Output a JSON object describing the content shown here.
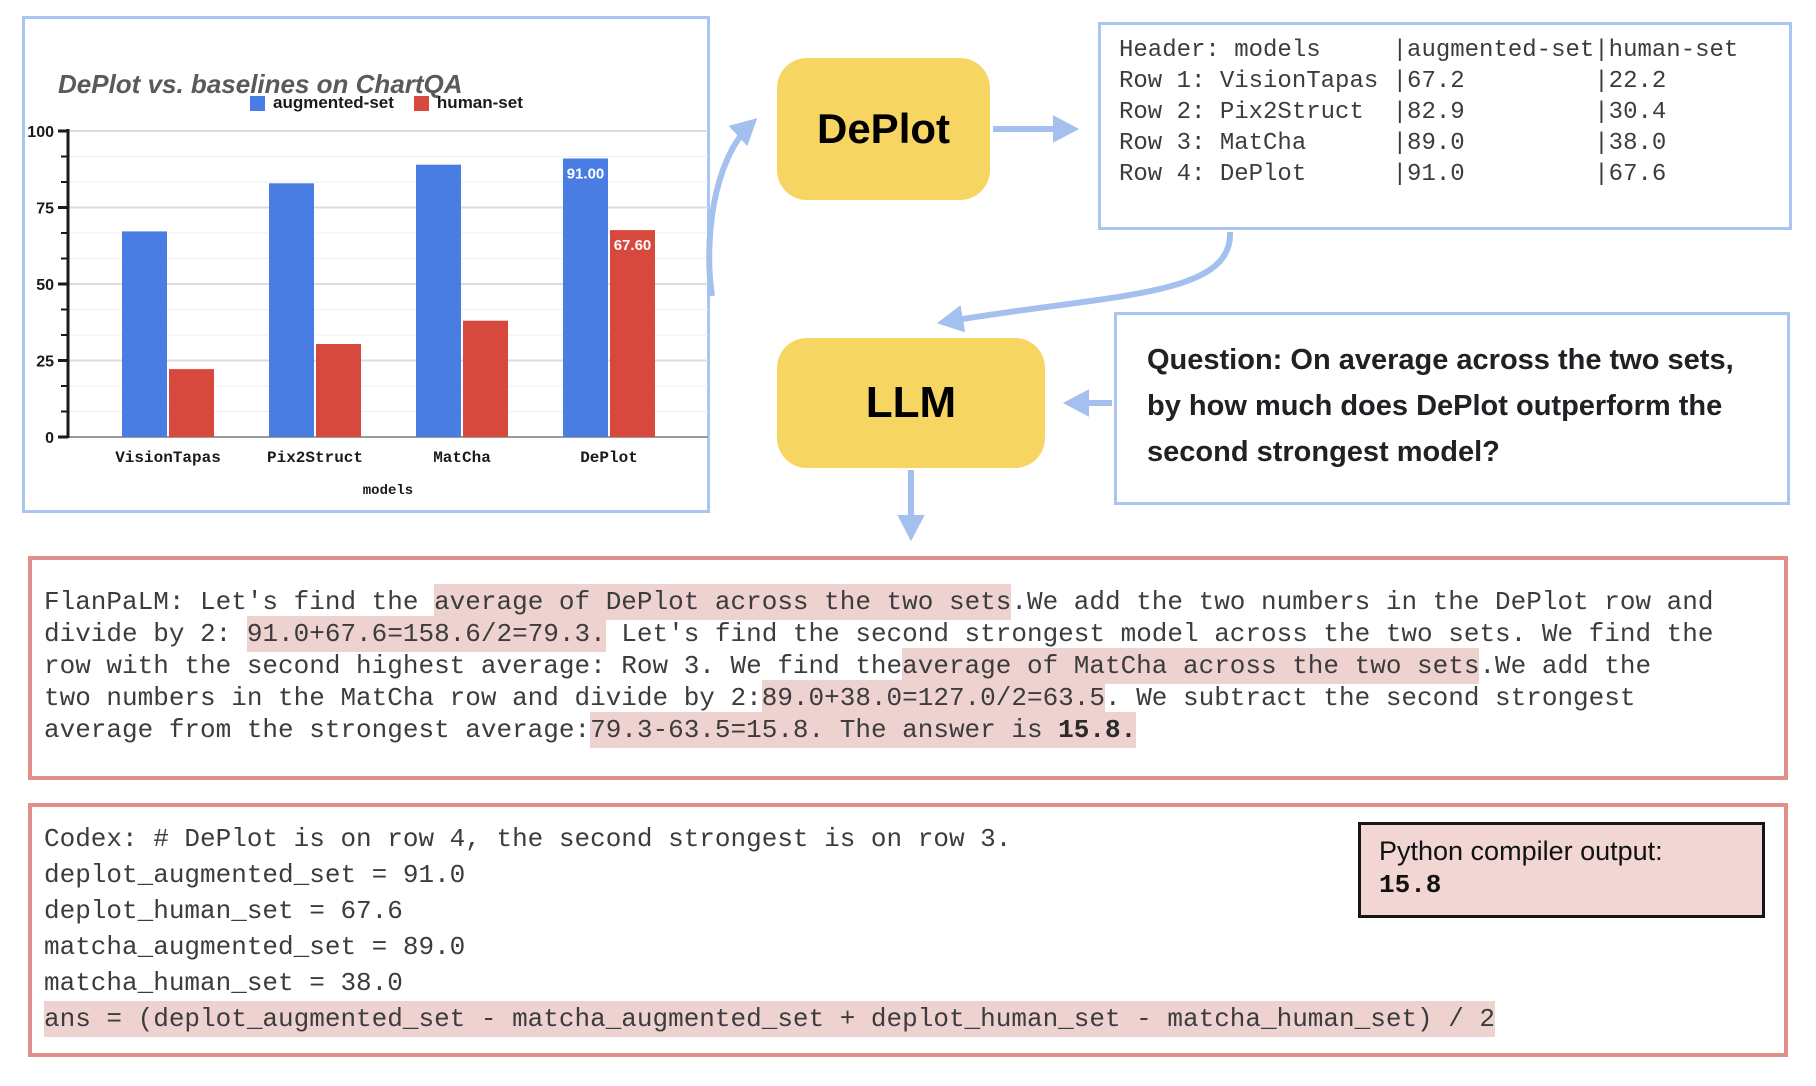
{
  "colors": {
    "bar_blue": "#4a7de4",
    "bar_red": "#d8493d",
    "box_border_blue": "#a9c5f2",
    "box_border_salmon": "#e08f8a",
    "arrow_blue": "#a4c0ee",
    "node_yellow": "#f6d563",
    "highlight_pink": "#edd2d0"
  },
  "chart_data": {
    "type": "bar",
    "title": "DePlot vs. baselines on ChartQA",
    "categories": [
      "VisionTapas",
      "Pix2Struct",
      "MatCha",
      "DePlot"
    ],
    "series": [
      {
        "name": "augmented-set",
        "color": "#4a7de4",
        "values": [
          67.2,
          82.9,
          89.0,
          91.0
        ]
      },
      {
        "name": "human-set",
        "color": "#d8493d",
        "values": [
          22.2,
          30.4,
          38.0,
          67.6
        ]
      }
    ],
    "value_labels": [
      [
        null,
        null,
        null,
        "91.00"
      ],
      [
        null,
        null,
        null,
        "67.60"
      ]
    ],
    "xlabel": "models",
    "ylabel": "",
    "ylim": [
      0,
      100
    ],
    "yticks": [
      0,
      25,
      50,
      75,
      100
    ],
    "grid": true,
    "legend_position": "top"
  },
  "pipeline": {
    "deplot_label": "DePlot",
    "llm_label": "LLM"
  },
  "table_box": {
    "lines": [
      "Header: models     |augmented-set|human-set",
      "Row 1: VisionTapas |67.2         |22.2",
      "Row 2: Pix2Struct  |82.9         |30.4",
      "Row 3: MatCha      |89.0         |38.0",
      "Row 4: DePlot      |91.0         |67.6"
    ]
  },
  "question_box": {
    "lines": [
      "Question: On average across the two sets,",
      "by how much does DePlot outperform the",
      "second strongest model?"
    ]
  },
  "flanpalm_box": {
    "lines": [
      [
        {
          "t": "FlanPaLM: Let's find the ",
          "h": false
        },
        {
          "t": "average of DePlot across the two sets",
          "h": true
        },
        {
          "t": ".We add the two numbers in the DePlot row and",
          "h": false
        }
      ],
      [
        {
          "t": "divide by 2: ",
          "h": false
        },
        {
          "t": "91.0+67.6=158.6/2=79.3.",
          "h": true
        },
        {
          "t": " Let's find the second strongest model across the two sets. We find the",
          "h": false
        }
      ],
      [
        {
          "t": "row with the second highest average: Row 3. We find the",
          "h": false
        },
        {
          "t": "average of MatCha across the two sets",
          "h": true
        },
        {
          "t": ".We add the",
          "h": false
        }
      ],
      [
        {
          "t": "two numbers in the MatCha row and divide by 2:",
          "h": false
        },
        {
          "t": "89.0+38.0=127.0/2=63.5",
          "h": true
        },
        {
          "t": ". We subtract the second strongest",
          "h": false
        }
      ],
      [
        {
          "t": "average from the strongest average:",
          "h": false
        },
        {
          "t": "79.3-63.5=15.8. The answer is ",
          "h": true
        },
        {
          "t": "15.8.",
          "h": true,
          "b": true
        }
      ]
    ]
  },
  "codex_box": {
    "lines": [
      [
        {
          "t": "Codex: # DePlot is on row 4, the second strongest is on row 3.",
          "h": false
        }
      ],
      [
        {
          "t": "deplot_augmented_set = 91.0",
          "h": false
        }
      ],
      [
        {
          "t": "deplot_human_set = 67.6",
          "h": false
        }
      ],
      [
        {
          "t": "matcha_augmented_set = 89.0",
          "h": false
        }
      ],
      [
        {
          "t": "matcha_human_set = 38.0",
          "h": false
        }
      ],
      [
        {
          "t": "ans = (deplot_augmented_set - matcha_augmented_set + deplot_human_set - matcha_human_set) / 2",
          "h": true
        }
      ]
    ]
  },
  "compiler_box": {
    "title": "Python compiler output:",
    "value": "15.8"
  }
}
